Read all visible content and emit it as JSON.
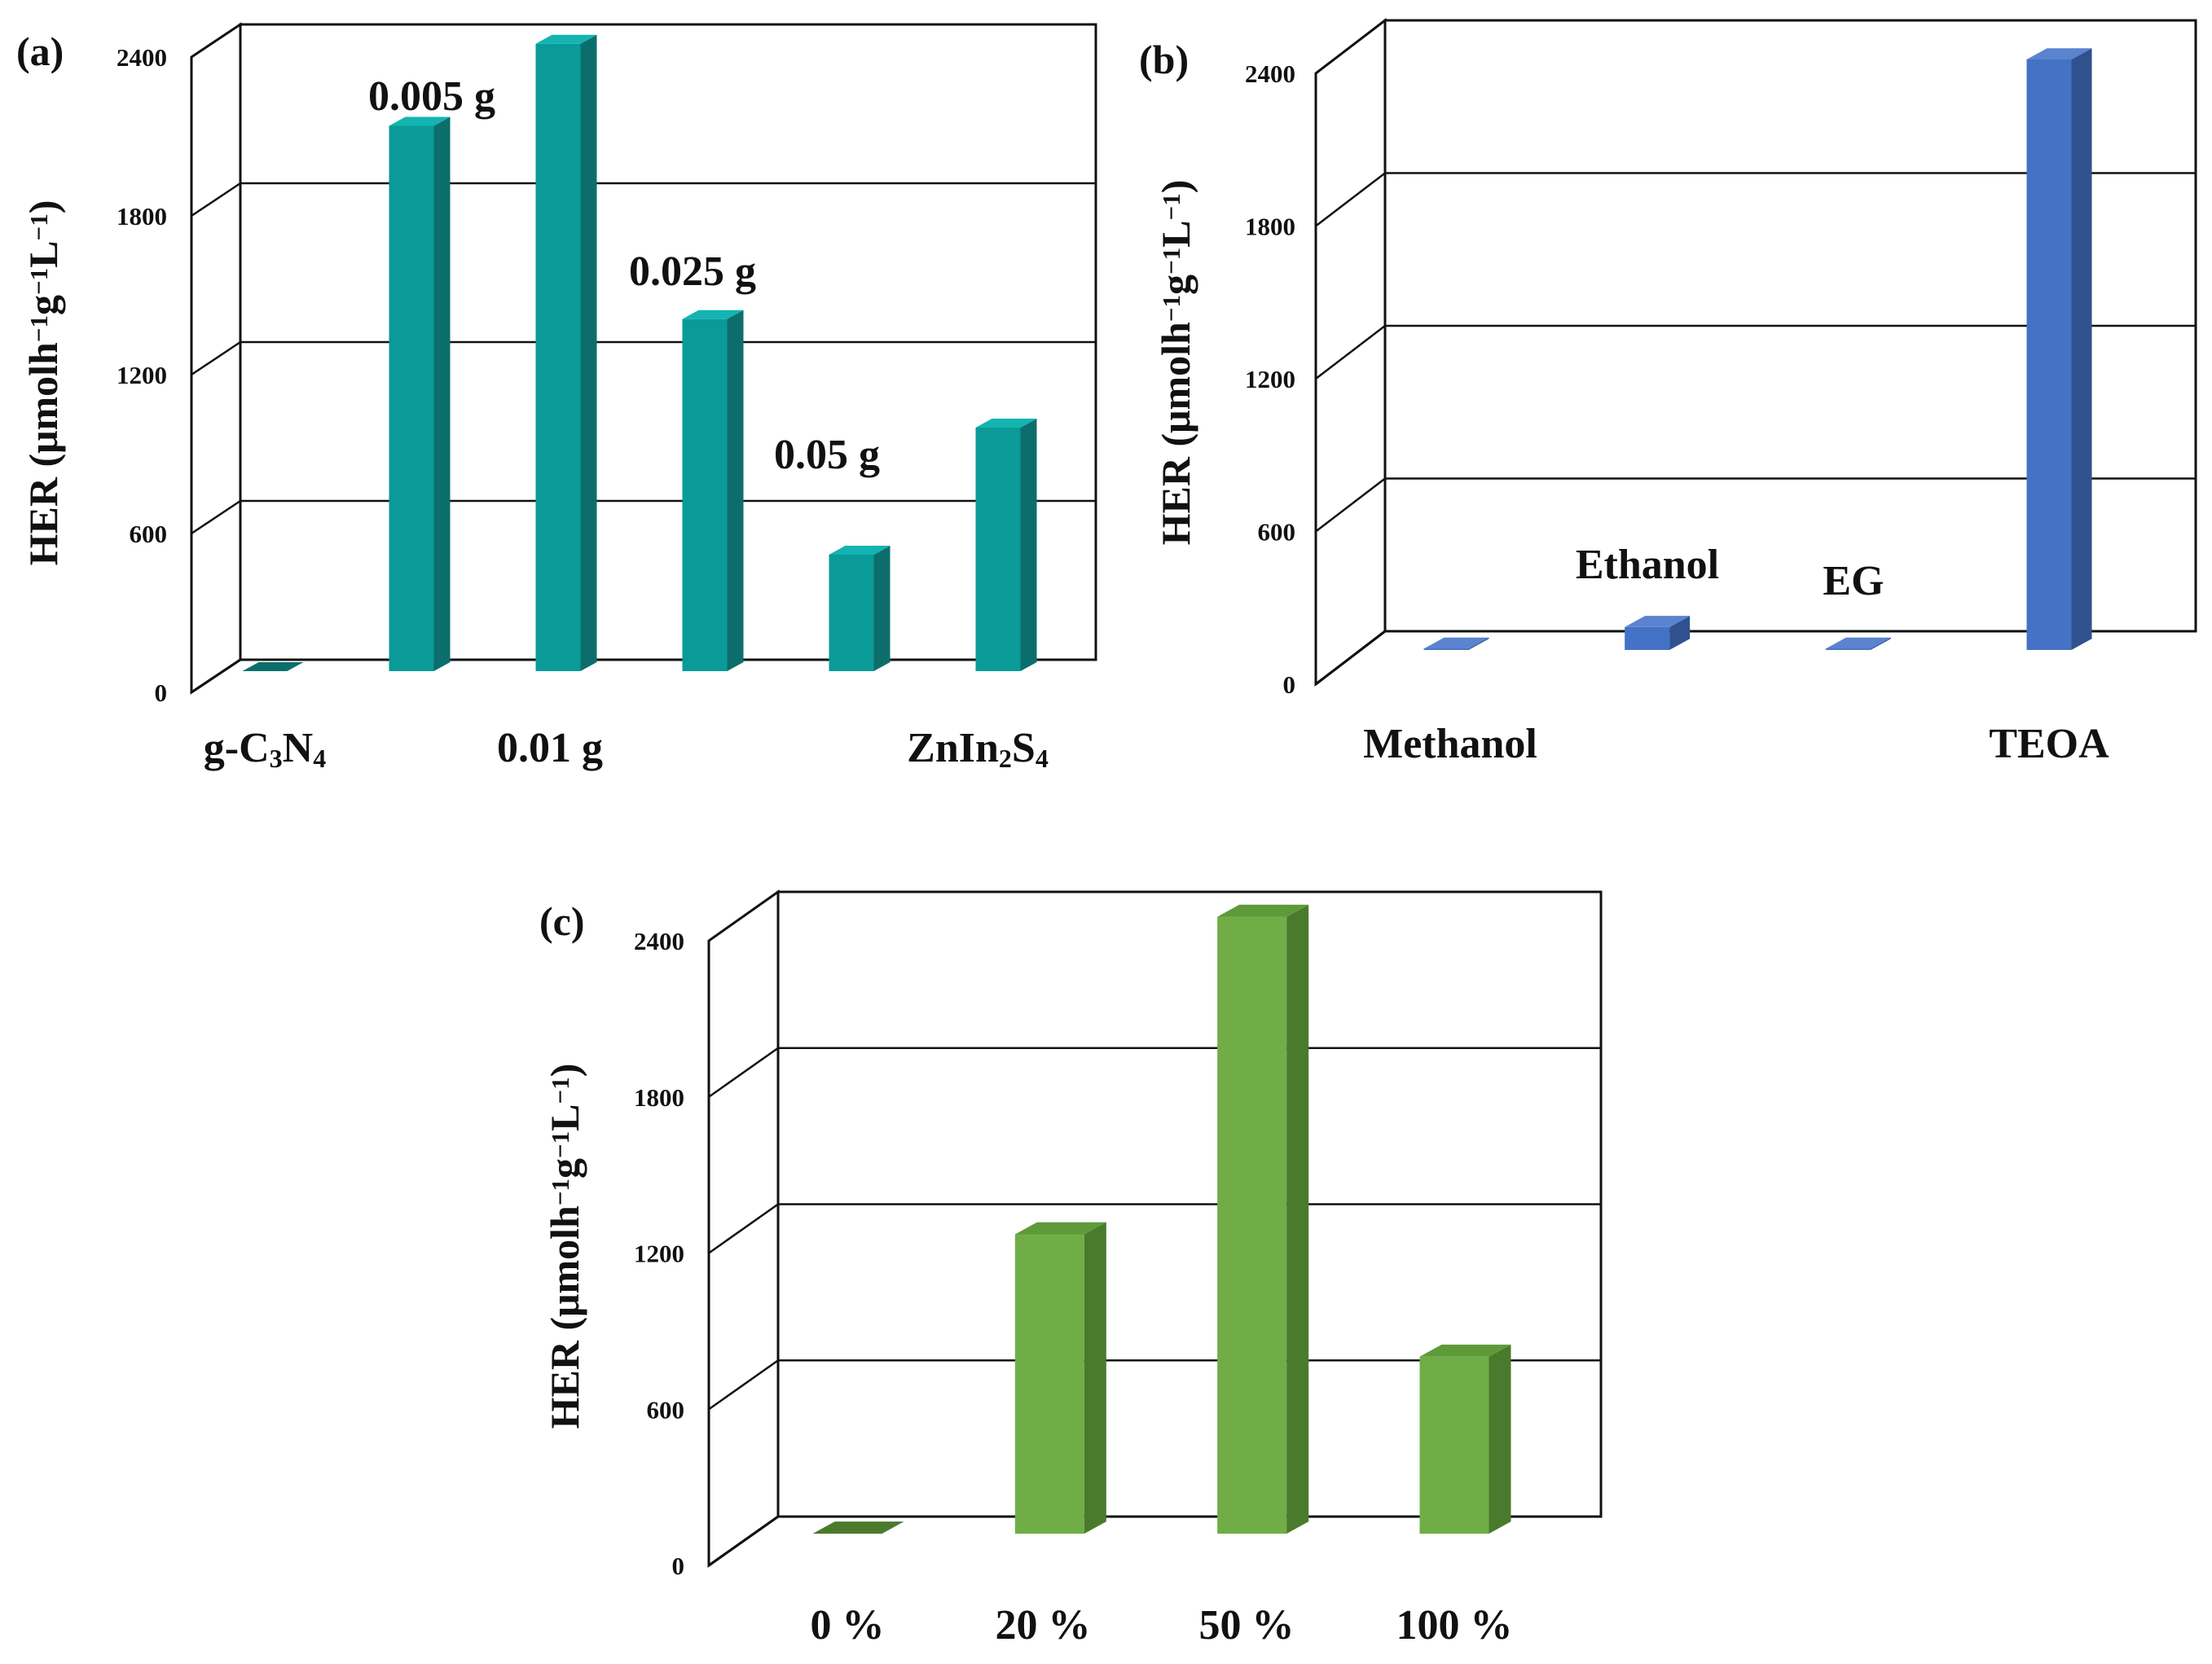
{
  "figure": {
    "description_free": true
  },
  "chart_data": [
    {
      "type": "bar",
      "panel_label": "(a)",
      "ylabel": "HER (μmolh⁻¹g⁻¹L⁻¹)",
      "ylim": [
        0,
        2400
      ],
      "yticks": [
        "0",
        "600",
        "1200",
        "1800",
        "2400"
      ],
      "grid": true,
      "color": "#0a9a98",
      "categories": [
        "g-C3N4",
        "0.005 g",
        "0.01 g",
        "0.025 g",
        "0.05 g",
        "ZnIn2S4"
      ],
      "values": [
        0,
        2060,
        2370,
        1330,
        440,
        920
      ],
      "axis_labels": [
        "g-C₃N₄",
        "0.01 g",
        "ZnIn₂S₄"
      ],
      "annotations": [
        "0.005 g",
        "0.025 g",
        "0.05 g"
      ]
    },
    {
      "type": "bar",
      "panel_label": "(b)",
      "ylabel": "HER (μmolh⁻¹g⁻¹L⁻¹)",
      "ylim": [
        0,
        2400
      ],
      "yticks": [
        "0",
        "600",
        "1200",
        "1800",
        "2400"
      ],
      "grid": true,
      "color": "#4472c4",
      "categories": [
        "Methanol",
        "Ethanol",
        "EG",
        "TEOA"
      ],
      "values": [
        5,
        90,
        5,
        2320
      ],
      "axis_labels": [
        "Methanol",
        "TEOA"
      ],
      "annotations": [
        "Ethanol",
        "EG"
      ]
    },
    {
      "type": "bar",
      "panel_label": "(c)",
      "ylabel": "HER (μmolh⁻¹g⁻¹L⁻¹)",
      "ylim": [
        0,
        2400
      ],
      "yticks": [
        "0",
        "600",
        "1200",
        "1800",
        "2400"
      ],
      "grid": true,
      "color": "#70ad47",
      "categories": [
        "0 %",
        "20 %",
        "50 %",
        "100 %"
      ],
      "values": [
        0,
        1150,
        2370,
        680
      ],
      "axis_labels": [
        "0 %",
        "20 %",
        "50 %",
        "100 %"
      ],
      "annotations": []
    }
  ],
  "colors": {
    "a": {
      "front": "#0a9a98",
      "side": "#0c6e6c",
      "top": "#13b4b1"
    },
    "b": {
      "front": "#4472c4",
      "side": "#2f528f",
      "top": "#5b84d0"
    },
    "c": {
      "front": "#70ad47",
      "side": "#4a7a2c",
      "top": "#5e9a3a"
    }
  }
}
